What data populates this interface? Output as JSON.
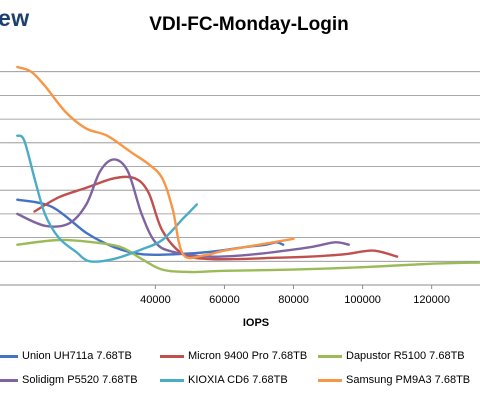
{
  "brand": {
    "text": "ew"
  },
  "chart_data": {
    "type": "line",
    "title": "VDI-FC-Monday-Login",
    "xlabel": "IOPS",
    "ylabel": "",
    "xlim": [
      -5000,
      134000
    ],
    "ylim": [
      0,
      10
    ],
    "grid": true,
    "legend_position": "bottom",
    "x_ticks": [
      {
        "value": 40000,
        "label": "40000"
      },
      {
        "value": 60000,
        "label": "60000"
      },
      {
        "value": 80000,
        "label": "80000"
      },
      {
        "value": 100000,
        "label": "100000"
      },
      {
        "value": 120000,
        "label": "120000"
      }
    ],
    "y_gridlines": [
      1,
      2,
      3,
      4,
      5,
      6,
      7,
      8,
      9
    ],
    "series": [
      {
        "name": "Union UH711a 7.68TB",
        "color": "#4472c4",
        "points": [
          [
            0,
            3.6
          ],
          [
            10000,
            3.3
          ],
          [
            20000,
            2.2
          ],
          [
            28000,
            1.6
          ],
          [
            36000,
            1.3
          ],
          [
            46000,
            1.3
          ],
          [
            56000,
            1.4
          ],
          [
            66000,
            1.6
          ],
          [
            72000,
            1.7
          ],
          [
            75000,
            1.8
          ],
          [
            77000,
            1.7
          ]
        ]
      },
      {
        "name": "Micron 9400 Pro 7.68TB",
        "color": "#c0504d",
        "points": [
          [
            5000,
            3.1
          ],
          [
            12000,
            3.7
          ],
          [
            20000,
            4.1
          ],
          [
            28000,
            4.5
          ],
          [
            34000,
            4.5
          ],
          [
            38000,
            3.9
          ],
          [
            42000,
            2.3
          ],
          [
            48000,
            1.3
          ],
          [
            55000,
            1.1
          ],
          [
            65000,
            1.1
          ],
          [
            75000,
            1.15
          ],
          [
            85000,
            1.2
          ],
          [
            95000,
            1.3
          ],
          [
            103000,
            1.45
          ],
          [
            110000,
            1.2
          ]
        ]
      },
      {
        "name": "Dapustor R5100 7.68TB",
        "color": "#9bbb59",
        "points": [
          [
            0,
            1.7
          ],
          [
            12000,
            1.9
          ],
          [
            22000,
            1.8
          ],
          [
            30000,
            1.6
          ],
          [
            36000,
            1.1
          ],
          [
            42000,
            0.65
          ],
          [
            50000,
            0.55
          ],
          [
            60000,
            0.6
          ],
          [
            80000,
            0.65
          ],
          [
            100000,
            0.75
          ],
          [
            120000,
            0.9
          ],
          [
            134000,
            0.95
          ]
        ]
      },
      {
        "name": "Solidigm P5520 7.68TB",
        "color": "#8064a2",
        "points": [
          [
            0,
            3.0
          ],
          [
            8000,
            2.5
          ],
          [
            15000,
            2.6
          ],
          [
            20000,
            3.4
          ],
          [
            24000,
            4.8
          ],
          [
            28000,
            5.3
          ],
          [
            32000,
            4.8
          ],
          [
            36000,
            3.0
          ],
          [
            40000,
            1.8
          ],
          [
            45000,
            1.4
          ],
          [
            55000,
            1.2
          ],
          [
            65000,
            1.25
          ],
          [
            75000,
            1.4
          ],
          [
            85000,
            1.6
          ],
          [
            92000,
            1.8
          ],
          [
            96000,
            1.7
          ]
        ]
      },
      {
        "name": "KIOXIA CD6 7.68TB",
        "color": "#4bacc6",
        "points": [
          [
            0,
            6.3
          ],
          [
            2000,
            6.1
          ],
          [
            5000,
            4.5
          ],
          [
            8000,
            3.0
          ],
          [
            12000,
            2.0
          ],
          [
            17000,
            1.4
          ],
          [
            21000,
            1.0
          ],
          [
            28000,
            1.1
          ],
          [
            36000,
            1.5
          ],
          [
            42000,
            1.9
          ],
          [
            48000,
            2.8
          ],
          [
            52000,
            3.4
          ]
        ]
      },
      {
        "name": "Samsung PM9A3 7.68TB",
        "color": "#f79646",
        "points": [
          [
            0,
            9.2
          ],
          [
            4000,
            9.0
          ],
          [
            8000,
            8.4
          ],
          [
            14000,
            7.3
          ],
          [
            20000,
            6.6
          ],
          [
            26000,
            6.3
          ],
          [
            33000,
            5.6
          ],
          [
            38000,
            5.1
          ],
          [
            42000,
            4.5
          ],
          [
            45000,
            3.2
          ],
          [
            48000,
            1.3
          ],
          [
            54000,
            1.25
          ],
          [
            60000,
            1.45
          ],
          [
            70000,
            1.7
          ],
          [
            80000,
            1.95
          ]
        ]
      }
    ]
  }
}
